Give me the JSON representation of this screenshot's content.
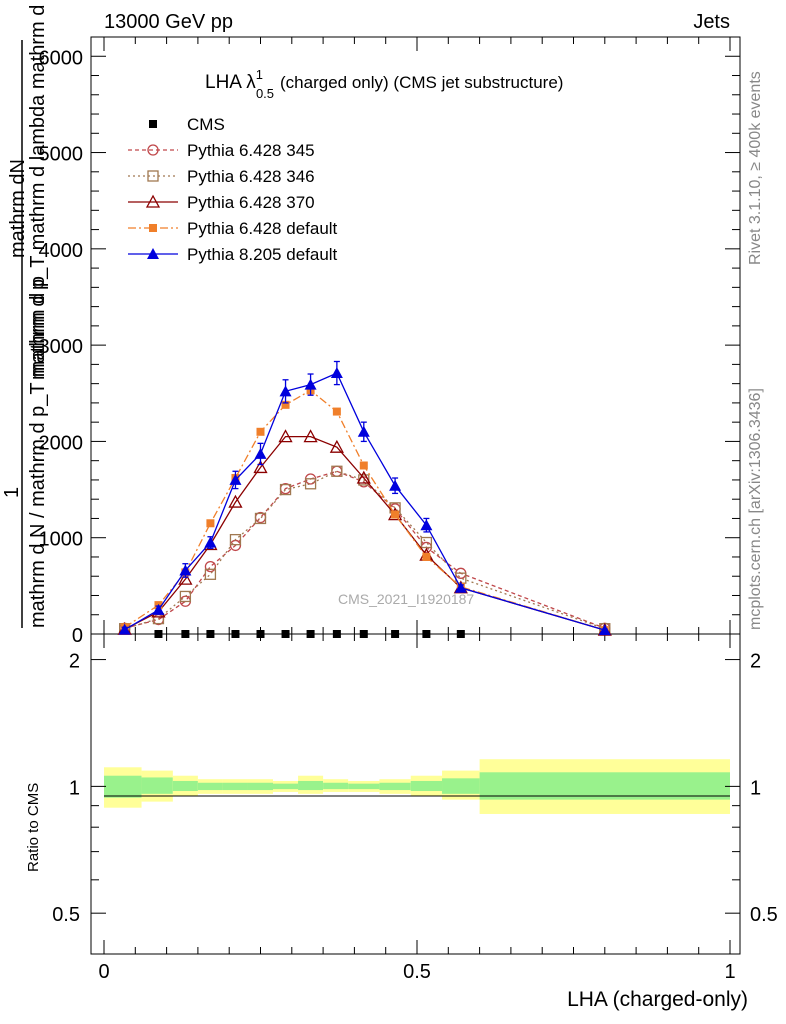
{
  "header": {
    "left": "13000 GeV pp",
    "right": "Jets"
  },
  "side_text": {
    "rivet": "Rivet 3.1.10, ≥ 400k events",
    "mcplots": "mcplots.cern.ch [arXiv:1306.3436]"
  },
  "watermark": "CMS_2021_I1920187",
  "chart_data": [
    {
      "panel": "main",
      "type": "line",
      "title": "LHA λ",
      "title_sup": "1",
      "title_sub": "0.5",
      "title_rest": "(charged only) (CMS jet substructure)",
      "ylabel_top": "mathrm dN",
      "ylabel_mid": "mathrm d p_T mathrm d lambda  mathrm d lambda",
      "ylabel_one": "1",
      "ylabel_bottom": "mathrm d N / mathrm d p_T mathrm d p",
      "xlim": [
        0,
        1
      ],
      "ylim": [
        0,
        6200
      ],
      "yticks": [
        0,
        1000,
        2000,
        3000,
        4000,
        5000,
        6000
      ],
      "ytick_labels": [
        "0",
        "1000",
        "2000",
        "3000",
        "4000",
        "5000",
        "6000"
      ],
      "data_x": [
        0.033,
        0.087,
        0.13,
        0.17,
        0.21,
        0.25,
        0.29,
        0.33,
        0.372,
        0.415,
        0.465,
        0.515,
        0.57,
        0.8
      ],
      "series": [
        {
          "name": "CMS",
          "marker": "square-filled",
          "color": "#000000",
          "dash": "none",
          "values": [
            0,
            0,
            0,
            0,
            0,
            0,
            0,
            0,
            0,
            0,
            0,
            0,
            0,
            0
          ],
          "errors": []
        },
        {
          "name": "Pythia 6.428 345",
          "marker": "circle-open",
          "color": "#c0474a",
          "dash": "4,3",
          "values": [
            60,
            150,
            340,
            700,
            920,
            1210,
            1510,
            1610,
            1690,
            1580,
            1300,
            900,
            630,
            60
          ],
          "errors": []
        },
        {
          "name": "Pythia 6.428 346",
          "marker": "square-open",
          "color": "#a07850",
          "dash": "2,3",
          "values": [
            55,
            160,
            390,
            620,
            980,
            1200,
            1500,
            1560,
            1690,
            1600,
            1310,
            950,
            580,
            55
          ],
          "errors": []
        },
        {
          "name": "Pythia 6.428 370",
          "marker": "triangle-open",
          "color": "#8b0000",
          "dash": "none",
          "values": [
            50,
            230,
            570,
            930,
            1370,
            1730,
            2050,
            2050,
            1940,
            1620,
            1240,
            820,
            480,
            40
          ],
          "errors": []
        },
        {
          "name": "Pythia 6.428 default",
          "marker": "square-filled",
          "color": "#f07f2a",
          "dash": "8,3,2,3",
          "values": [
            70,
            300,
            640,
            1150,
            1620,
            2100,
            2380,
            2530,
            2310,
            1750,
            1240,
            800,
            490,
            40
          ],
          "errors": []
        },
        {
          "name": "Pythia 8.205 default",
          "marker": "triangle-filled",
          "color": "#0000dd",
          "dash": "none",
          "values": [
            45,
            250,
            660,
            950,
            1600,
            1870,
            2520,
            2590,
            2710,
            2100,
            1540,
            1130,
            480,
            40
          ],
          "errors": [
            25,
            40,
            70,
            60,
            90,
            110,
            120,
            110,
            120,
            100,
            80,
            70,
            30,
            10
          ]
        }
      ]
    },
    {
      "panel": "ratio",
      "type": "area",
      "ylabel": "Ratio to CMS",
      "xlabel": "LHA (charged-only)",
      "xlim": [
        0,
        1
      ],
      "ylim": [
        0.4,
        2.3
      ],
      "yticks": [
        0.5,
        1,
        2
      ],
      "ytick_labels": [
        "0.5",
        "1",
        "2"
      ],
      "xticks": [
        0,
        0.5,
        1
      ],
      "xtick_labels": [
        "0",
        "0.5",
        "1"
      ],
      "bins": [
        {
          "lo": 0.0,
          "hi": 0.06,
          "green": [
            0.94,
            1.06
          ],
          "yellow": [
            0.89,
            1.11
          ]
        },
        {
          "lo": 0.06,
          "hi": 0.11,
          "green": [
            0.96,
            1.05
          ],
          "yellow": [
            0.92,
            1.09
          ]
        },
        {
          "lo": 0.11,
          "hi": 0.15,
          "green": [
            0.975,
            1.03
          ],
          "yellow": [
            0.95,
            1.06
          ]
        },
        {
          "lo": 0.15,
          "hi": 0.19,
          "green": [
            0.98,
            1.02
          ],
          "yellow": [
            0.96,
            1.04
          ]
        },
        {
          "lo": 0.19,
          "hi": 0.23,
          "green": [
            0.98,
            1.02
          ],
          "yellow": [
            0.96,
            1.04
          ]
        },
        {
          "lo": 0.23,
          "hi": 0.27,
          "green": [
            0.98,
            1.02
          ],
          "yellow": [
            0.96,
            1.04
          ]
        },
        {
          "lo": 0.27,
          "hi": 0.31,
          "green": [
            0.985,
            1.015
          ],
          "yellow": [
            0.97,
            1.03
          ]
        },
        {
          "lo": 0.31,
          "hi": 0.35,
          "green": [
            0.98,
            1.03
          ],
          "yellow": [
            0.96,
            1.06
          ]
        },
        {
          "lo": 0.35,
          "hi": 0.39,
          "green": [
            0.985,
            1.02
          ],
          "yellow": [
            0.97,
            1.04
          ]
        },
        {
          "lo": 0.39,
          "hi": 0.44,
          "green": [
            0.985,
            1.015
          ],
          "yellow": [
            0.97,
            1.03
          ]
        },
        {
          "lo": 0.44,
          "hi": 0.49,
          "green": [
            0.98,
            1.02
          ],
          "yellow": [
            0.96,
            1.04
          ]
        },
        {
          "lo": 0.49,
          "hi": 0.54,
          "green": [
            0.975,
            1.03
          ],
          "yellow": [
            0.95,
            1.06
          ]
        },
        {
          "lo": 0.54,
          "hi": 0.6,
          "green": [
            0.96,
            1.045
          ],
          "yellow": [
            0.93,
            1.09
          ]
        },
        {
          "lo": 0.6,
          "hi": 1.0,
          "green": [
            0.93,
            1.08
          ],
          "yellow": [
            0.86,
            1.16
          ]
        }
      ]
    }
  ]
}
